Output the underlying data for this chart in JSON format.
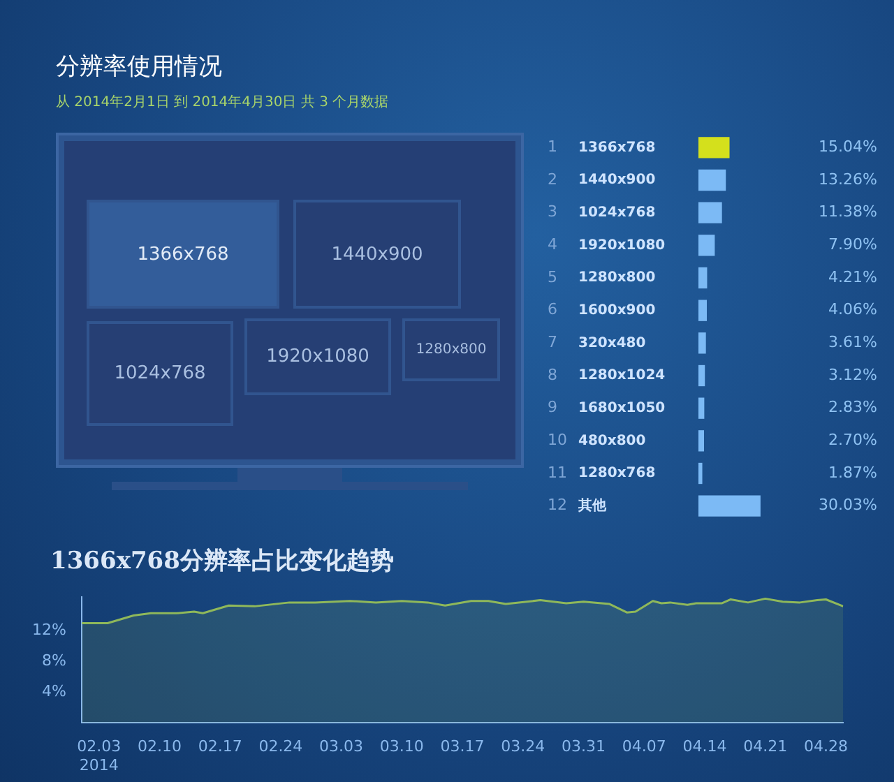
{
  "chart_data": [
    {
      "type": "other",
      "title": "分辨率使用情况",
      "subtitle": "从 2014年2月1日 到 2014年4月30日 共 3 个月数据",
      "categories": [
        "1366x768",
        "1440x900",
        "1024x768",
        "1920x1080",
        "1280x800"
      ]
    },
    {
      "type": "bar",
      "orientation": "horizontal",
      "categories": [
        "1366x768",
        "1440x900",
        "1024x768",
        "1920x1080",
        "1280x800",
        "1600x900",
        "320x480",
        "1280x1024",
        "1680x1050",
        "480x800",
        "1280x768",
        "其他"
      ],
      "y2_categories": [
        "1",
        "2",
        "3",
        "4",
        "5",
        "6",
        "7",
        "8",
        "9",
        "10",
        "11",
        "12"
      ],
      "values": [
        15.04,
        13.26,
        11.38,
        7.9,
        4.21,
        4.06,
        3.61,
        3.12,
        2.83,
        2.7,
        1.87,
        30.03
      ],
      "value_labels": [
        "15.04%",
        "13.26%",
        "11.38%",
        "7.90%",
        "4.21%",
        "4.06%",
        "3.61%",
        "3.12%",
        "2.83%",
        "2.70%",
        "1.87%",
        "30.03%"
      ],
      "colors": [
        "#d4e01c",
        "#7cbaf5",
        "#7cbaf5",
        "#7cbaf5",
        "#7cbaf5",
        "#7cbaf5",
        "#7cbaf5",
        "#7cbaf5",
        "#7cbaf5",
        "#7cbaf5",
        "#7cbaf5",
        "#7cbaf5"
      ],
      "legend": false
    },
    {
      "type": "area",
      "title": "1366x768分辨率占比变化趋势",
      "color": "#8fb85a",
      "x": [
        "2014-02-01",
        "2014-02-04",
        "2014-02-07",
        "2014-02-09",
        "2014-02-12",
        "2014-02-14",
        "2014-02-15",
        "2014-02-18",
        "2014-02-21",
        "2014-02-25",
        "2014-02-28",
        "2014-03-04",
        "2014-03-07",
        "2014-03-10",
        "2014-03-13",
        "2014-03-15",
        "2014-03-18",
        "2014-03-20",
        "2014-03-22",
        "2014-03-26",
        "2014-03-29",
        "2014-03-31",
        "2014-04-03",
        "2014-04-05",
        "2014-04-06",
        "2014-04-08",
        "2014-04-09",
        "2014-04-10",
        "2014-04-12",
        "2014-04-13",
        "2014-04-16",
        "2014-04-17",
        "2014-04-19",
        "2014-04-21",
        "2014-04-23",
        "2014-04-25",
        "2014-04-27",
        "2014-04-28",
        "2014-04-30"
      ],
      "values": [
        13.0,
        13.0,
        14.0,
        14.3,
        14.3,
        14.5,
        14.3,
        15.3,
        15.2,
        15.7,
        15.7,
        15.9,
        15.7,
        15.9,
        15.7,
        15.3,
        15.9,
        15.9,
        15.5,
        16.0,
        15.6,
        15.8,
        15.5,
        14.4,
        14.5,
        15.9,
        15.6,
        15.7,
        15.4,
        15.6,
        15.6,
        16.1,
        15.7,
        16.2,
        15.8,
        15.7,
        16.0,
        16.1,
        15.2
      ],
      "xlim": [
        "2014-02-01",
        "2014-04-30"
      ],
      "xticks": [
        {
          "value": "2014-02-03",
          "label": "02.03\n2014"
        },
        {
          "value": "2014-02-10",
          "label": "02.10"
        },
        {
          "value": "2014-02-17",
          "label": "02.17"
        },
        {
          "value": "2014-02-24",
          "label": "02.24"
        },
        {
          "value": "2014-03-03",
          "label": "03.03"
        },
        {
          "value": "2014-03-10",
          "label": "03.10"
        },
        {
          "value": "2014-03-17",
          "label": "03.17"
        },
        {
          "value": "2014-03-24",
          "label": "03.24"
        },
        {
          "value": "2014-03-31",
          "label": "03.31"
        },
        {
          "value": "2014-04-07",
          "label": "04.07"
        },
        {
          "value": "2014-04-14",
          "label": "04.14"
        },
        {
          "value": "2014-04-21",
          "label": "04.21"
        },
        {
          "value": "2014-04-28",
          "label": "04.28"
        }
      ],
      "ylim": [
        0,
        16.4
      ],
      "yticks": [
        {
          "value": 4,
          "label": "4%"
        },
        {
          "value": 8,
          "label": "8%"
        },
        {
          "value": 12,
          "label": "12%"
        }
      ],
      "grid": false,
      "legend": false,
      "marker": "none"
    }
  ]
}
